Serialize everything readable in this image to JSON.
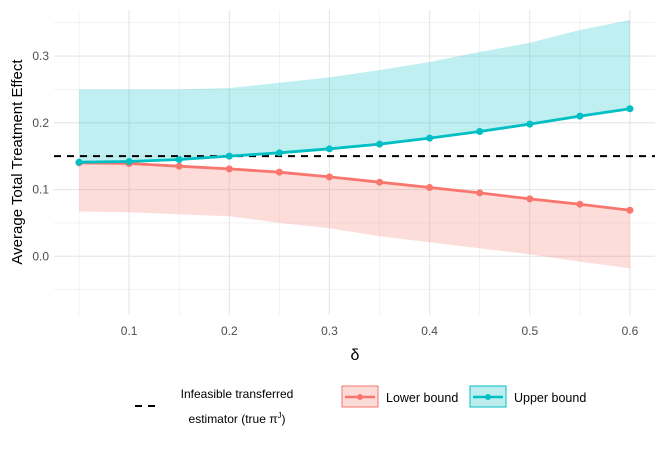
{
  "chart_data": {
    "type": "line",
    "xlabel": "δ",
    "ylabel": "Average Total Treatment Effect",
    "xlim": [
      0.025,
      0.625
    ],
    "ylim": [
      -0.088,
      0.369
    ],
    "x_ticks": [
      0.1,
      0.2,
      0.3,
      0.4,
      0.5,
      0.6
    ],
    "x_tick_labels": [
      "0.1",
      "0.2",
      "0.3",
      "0.4",
      "0.5",
      "0.6"
    ],
    "y_ticks": [
      0.0,
      0.1,
      0.2,
      0.3
    ],
    "y_tick_labels": [
      "0.0",
      "0.1",
      "0.2",
      "0.3"
    ],
    "grid": true,
    "legend_position": "bottom",
    "x": [
      0.05,
      0.1,
      0.15,
      0.2,
      0.25,
      0.3,
      0.35,
      0.4,
      0.45,
      0.5,
      0.55,
      0.6
    ],
    "series": [
      {
        "name": "Lower bound",
        "color": "#F8766D",
        "values": [
          0.14,
          0.139,
          0.135,
          0.131,
          0.126,
          0.119,
          0.111,
          0.103,
          0.095,
          0.086,
          0.078,
          0.069
        ],
        "ribbon_lower": [
          0.067,
          0.066,
          0.063,
          0.06,
          0.05,
          0.042,
          0.03,
          0.021,
          0.012,
          0.003,
          -0.008,
          -0.018
        ],
        "ribbon_upper": [
          0.14,
          0.139,
          0.135,
          0.131,
          0.126,
          0.119,
          0.111,
          0.103,
          0.095,
          0.086,
          0.078,
          0.069
        ]
      },
      {
        "name": "Upper bound",
        "color": "#00BFC4",
        "values": [
          0.141,
          0.142,
          0.145,
          0.15,
          0.155,
          0.161,
          0.168,
          0.177,
          0.187,
          0.198,
          0.21,
          0.221
        ],
        "ribbon_lower": [
          0.141,
          0.142,
          0.145,
          0.15,
          0.155,
          0.161,
          0.168,
          0.177,
          0.187,
          0.198,
          0.21,
          0.221
        ],
        "ribbon_upper": [
          0.25,
          0.25,
          0.25,
          0.252,
          0.26,
          0.268,
          0.279,
          0.291,
          0.306,
          0.32,
          0.339,
          0.354
        ]
      }
    ],
    "reference_line": {
      "y": 0.15,
      "style": "dashed",
      "color": "#000000"
    },
    "legend": {
      "reference_label_line1": "Infeasible transferred",
      "reference_label_line2": "estimator (true π",
      "reference_label_sup": "J",
      "reference_label_end": ")",
      "lower_label": "Lower bound",
      "upper_label": "Upper bound"
    }
  }
}
